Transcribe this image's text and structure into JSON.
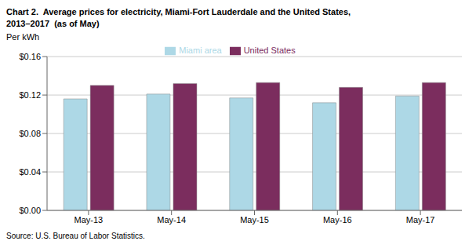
{
  "chart_data": {
    "type": "bar",
    "title": "Chart 2.  Average prices for electricity, Miami-Fort Lauderdale and the United States,",
    "subtitle": "2013–2017  (as of May)",
    "ylabel": "Per kWh",
    "annotations": [
      "Source: U.S. Bureau of Labor Statistics."
    ],
    "categories": [
      "May-13",
      "May-14",
      "May-15",
      "May-16",
      "May-17"
    ],
    "series": [
      {
        "name": "Miami area",
        "color": "#ADD8E6",
        "values": [
          0.116,
          0.121,
          0.117,
          0.112,
          0.119
        ]
      },
      {
        "name": "United States",
        "color": "#7B2D5E",
        "values": [
          0.13,
          0.132,
          0.133,
          0.128,
          0.133
        ]
      }
    ],
    "ylim": [
      0.0,
      0.16
    ],
    "yticks": [
      {
        "value": 0.0,
        "label": "$0.00"
      },
      {
        "value": 0.04,
        "label": "$0.04"
      },
      {
        "value": 0.08,
        "label": "$0.08"
      },
      {
        "value": 0.12,
        "label": "$0.12"
      },
      {
        "value": 0.16,
        "label": "$0.16"
      }
    ],
    "grid": true,
    "legend": "top"
  }
}
